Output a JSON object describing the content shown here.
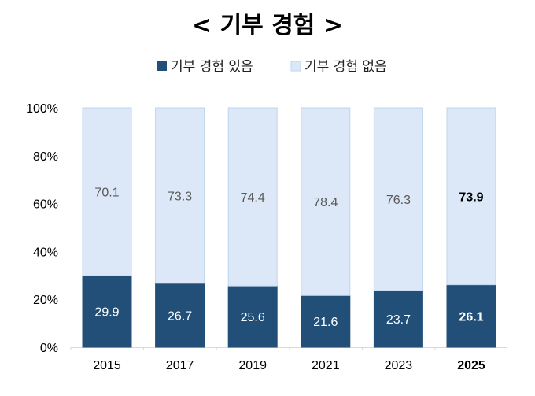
{
  "chart_data": {
    "type": "bar",
    "stacked": true,
    "title": "< 기부 경험 >",
    "categories": [
      "2015",
      "2017",
      "2019",
      "2021",
      "2023",
      "2025"
    ],
    "highlight_category": "2025",
    "series": [
      {
        "name": "기부 경험 있음",
        "color": "#214f78",
        "label_color": "#ffffff",
        "values": [
          29.9,
          26.7,
          25.6,
          21.6,
          23.7,
          26.1
        ]
      },
      {
        "name": "기부 경험 없음",
        "color": "#dce8f7",
        "border": "#bdd5ee",
        "label_color": "#595959",
        "values": [
          70.1,
          73.3,
          74.4,
          78.4,
          76.3,
          73.9
        ]
      }
    ],
    "yticks": [
      "0%",
      "20%",
      "40%",
      "60%",
      "80%",
      "100%"
    ],
    "ylim": [
      0,
      100
    ],
    "grid": false,
    "legend": "top"
  }
}
